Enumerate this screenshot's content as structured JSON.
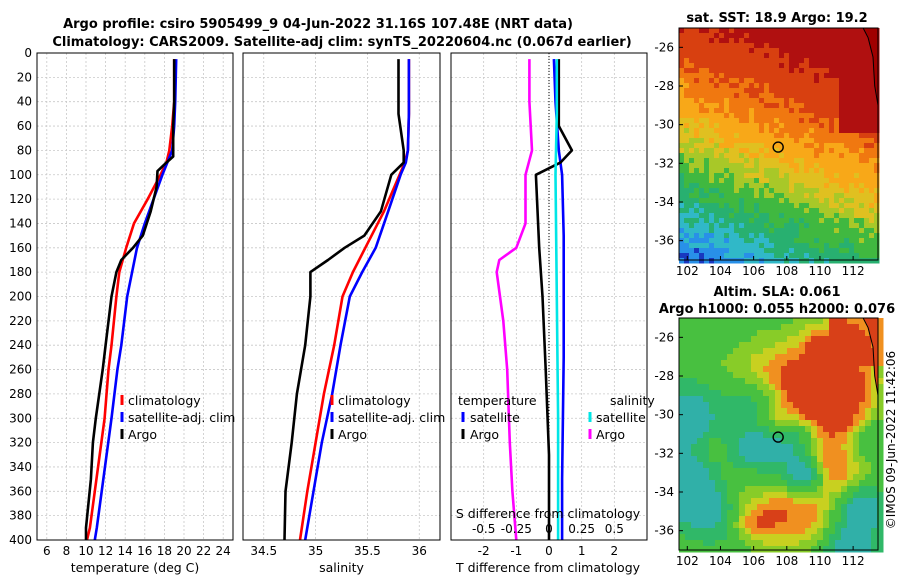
{
  "figure": {
    "title_line1": "Argo profile: csiro 5905499_9 04-Jun-2022 31.16S 107.48E (NRT data)",
    "title_line2": "Climatology: CARS2009. Satellite-adj clim: synTS_20220604.nc (0.067d earlier)",
    "credit": "©IMOS 09-Jun-2022 11:42:06"
  },
  "colors": {
    "climatology": "#ff0000",
    "satellite_adj": "#0000ff",
    "argo": "#000000",
    "salinity_satellite": "#00e6e6",
    "salinity_argo": "#ff00ff",
    "grid": "#c8c8c8"
  },
  "depth_ticks": [
    "0",
    "20",
    "40",
    "60",
    "80",
    "100",
    "120",
    "140",
    "160",
    "180",
    "200",
    "220",
    "240",
    "260",
    "280",
    "300",
    "320",
    "340",
    "360",
    "380",
    "400"
  ],
  "chart_data": [
    {
      "type": "line",
      "name": "temperature-profile",
      "xlabel": "temperature (deg C)",
      "ylabel": "depth",
      "xlim": [
        5,
        25
      ],
      "ylim": [
        400,
        0
      ],
      "xticks": [
        "6",
        "8",
        "10",
        "12",
        "14",
        "16",
        "18",
        "20",
        "22",
        "24"
      ],
      "xtick_values": [
        6,
        8,
        10,
        12,
        14,
        16,
        18,
        20,
        22,
        24
      ],
      "legend": [
        "climatology",
        "satellite-adj. clim",
        "Argo"
      ],
      "legend_position": "lower-right",
      "series": [
        {
          "name": "climatology",
          "color": "#ff0000",
          "x": [
            19.0,
            19.0,
            18.8,
            18.5,
            18.2,
            17.6,
            16.3,
            14.9,
            14.1,
            13.4,
            13.1,
            12.6,
            12.3,
            11.9,
            11.4,
            10.9,
            10.4,
            10.1
          ],
          "y": [
            5,
            40,
            60,
            80,
            90,
            100,
            120,
            140,
            160,
            180,
            200,
            240,
            260,
            300,
            330,
            360,
            390,
            400
          ]
        },
        {
          "name": "satellite-adj. clim",
          "color": "#0000ff",
          "x": [
            19.2,
            19.1,
            19.0,
            18.8,
            18.3,
            17.8,
            16.9,
            16.0,
            15.2,
            14.7,
            14.2,
            13.6,
            13.2,
            12.6,
            12.1,
            11.6,
            11.1,
            10.9
          ],
          "y": [
            5,
            40,
            60,
            80,
            90,
            100,
            120,
            140,
            160,
            180,
            200,
            240,
            260,
            300,
            330,
            360,
            390,
            400
          ]
        },
        {
          "name": "Argo",
          "color": "#000000",
          "x": [
            19.0,
            19.0,
            18.9,
            18.9,
            18.2,
            17.3,
            17.2,
            16.6,
            15.8,
            14.8,
            13.6,
            13.1,
            12.6,
            12.0,
            11.7,
            11.0,
            10.7,
            10.5,
            10.0,
            10.0
          ],
          "y": [
            5,
            40,
            60,
            85,
            90,
            97,
            110,
            130,
            150,
            160,
            170,
            180,
            200,
            240,
            260,
            300,
            320,
            350,
            390,
            400
          ]
        }
      ]
    },
    {
      "type": "line",
      "name": "salinity-profile",
      "xlabel": "salinity",
      "ylabel": "depth",
      "xlim": [
        34.3,
        36.2
      ],
      "ylim": [
        400,
        0
      ],
      "xticks": [
        "34.5",
        "35",
        "35.5",
        "36"
      ],
      "xtick_values": [
        34.5,
        35,
        35.5,
        36
      ],
      "legend": [
        "climatology",
        "satellite-adj. clim",
        "Argo"
      ],
      "legend_position": "lower-right",
      "series": [
        {
          "name": "climatology",
          "color": "#ff0000",
          "x": [
            35.9,
            35.9,
            35.89,
            35.86,
            35.81,
            35.66,
            35.48,
            35.36,
            35.26,
            35.18,
            35.08,
            35.0,
            34.92,
            34.85
          ],
          "y": [
            5,
            50,
            80,
            90,
            100,
            130,
            160,
            180,
            200,
            240,
            280,
            320,
            360,
            400
          ]
        },
        {
          "name": "satellite-adj. clim",
          "color": "#0000ff",
          "x": [
            35.9,
            35.9,
            35.89,
            35.87,
            35.82,
            35.7,
            35.58,
            35.45,
            35.33,
            35.24,
            35.16,
            35.06,
            34.98,
            34.9
          ],
          "y": [
            5,
            50,
            80,
            90,
            100,
            130,
            160,
            180,
            200,
            240,
            280,
            320,
            360,
            400
          ]
        },
        {
          "name": "Argo",
          "color": "#000000",
          "x": [
            35.8,
            35.8,
            35.85,
            35.85,
            35.73,
            35.63,
            35.47,
            35.28,
            35.12,
            34.95,
            34.95,
            34.9,
            34.82,
            34.77,
            34.71,
            34.7
          ],
          "y": [
            5,
            50,
            80,
            90,
            100,
            130,
            150,
            160,
            170,
            180,
            200,
            240,
            280,
            320,
            360,
            400
          ]
        }
      ]
    },
    {
      "type": "line",
      "name": "difference-profile",
      "xlabel": "T difference from climatology",
      "x2label": "S difference from climatology",
      "ylabel": "depth",
      "xlim": [
        -3,
        3
      ],
      "ylim": [
        400,
        0
      ],
      "xticks": [
        "-2",
        "-1",
        "0",
        "1",
        "2"
      ],
      "xtick_values": [
        -2,
        -1,
        0,
        1,
        2
      ],
      "x2ticks": [
        "-0.5",
        "-0.25",
        "0",
        "0.25",
        "0.5"
      ],
      "x2tick_values": [
        -0.5,
        -0.25,
        0,
        0.25,
        0.5
      ],
      "legend_groups": [
        {
          "title": "temperature",
          "entries": [
            "satellite",
            "Argo"
          ]
        },
        {
          "title": "salinity",
          "entries": [
            "satellite",
            "Argo"
          ]
        }
      ],
      "series": [
        {
          "name": "temperature satellite",
          "color": "#0000ff",
          "x": [
            0.15,
            0.2,
            0.3,
            0.4,
            0.45,
            0.45,
            0.4,
            0.4
          ],
          "y": [
            5,
            40,
            80,
            100,
            150,
            250,
            350,
            400
          ]
        },
        {
          "name": "temperature Argo",
          "color": "#000000",
          "x": [
            0.3,
            0.3,
            0.3,
            0.7,
            0.35,
            -0.4,
            -0.3,
            -0.2,
            -0.1,
            0.0,
            0.0
          ],
          "y": [
            5,
            40,
            60,
            80,
            90,
            100,
            160,
            200,
            260,
            330,
            400
          ]
        },
        {
          "name": "salinity satellite",
          "color": "#00e6e6",
          "x": [
            0.06,
            0.06,
            0.05,
            0.06,
            0.07,
            0.07
          ],
          "y": [
            5,
            50,
            100,
            200,
            300,
            400
          ]
        },
        {
          "name": "salinity Argo",
          "color": "#ff00ff",
          "x": [
            -0.15,
            -0.15,
            -0.13,
            -0.18,
            -0.18,
            -0.25,
            -0.38,
            -0.4,
            -0.35,
            -0.32,
            -0.3,
            -0.28,
            -0.25
          ],
          "y": [
            5,
            40,
            80,
            100,
            140,
            160,
            170,
            180,
            220,
            260,
            320,
            360,
            400
          ]
        }
      ]
    },
    {
      "type": "heatmap",
      "name": "sst-map",
      "title": "sat. SST: 18.9 Argo: 19.2",
      "xlim": [
        101.5,
        113.5
      ],
      "ylim": [
        -37,
        -25
      ],
      "xticks": [
        "102",
        "104",
        "106",
        "108",
        "110",
        "112"
      ],
      "xtick_values": [
        102,
        104,
        106,
        108,
        110,
        112
      ],
      "yticks": [
        "-26",
        "-28",
        "-30",
        "-32",
        "-34",
        "-36"
      ],
      "ytick_values": [
        -26,
        -28,
        -30,
        -32,
        -34,
        -36
      ],
      "marker": {
        "lon": 107.48,
        "lat": -31.16
      }
    },
    {
      "type": "heatmap",
      "name": "sla-map",
      "title_line1": "Altim. SLA: 0.061",
      "title_line2": "Argo h1000: 0.055 h2000: 0.076",
      "xlim": [
        101.5,
        113.5
      ],
      "ylim": [
        -37,
        -25
      ],
      "xticks": [
        "102",
        "104",
        "106",
        "108",
        "110",
        "112"
      ],
      "xtick_values": [
        102,
        104,
        106,
        108,
        110,
        112
      ],
      "yticks": [
        "-26",
        "-28",
        "-30",
        "-32",
        "-34",
        "-36"
      ],
      "ytick_values": [
        -26,
        -28,
        -30,
        -32,
        -34,
        -36
      ],
      "marker": {
        "lon": 107.48,
        "lat": -31.16
      }
    }
  ]
}
